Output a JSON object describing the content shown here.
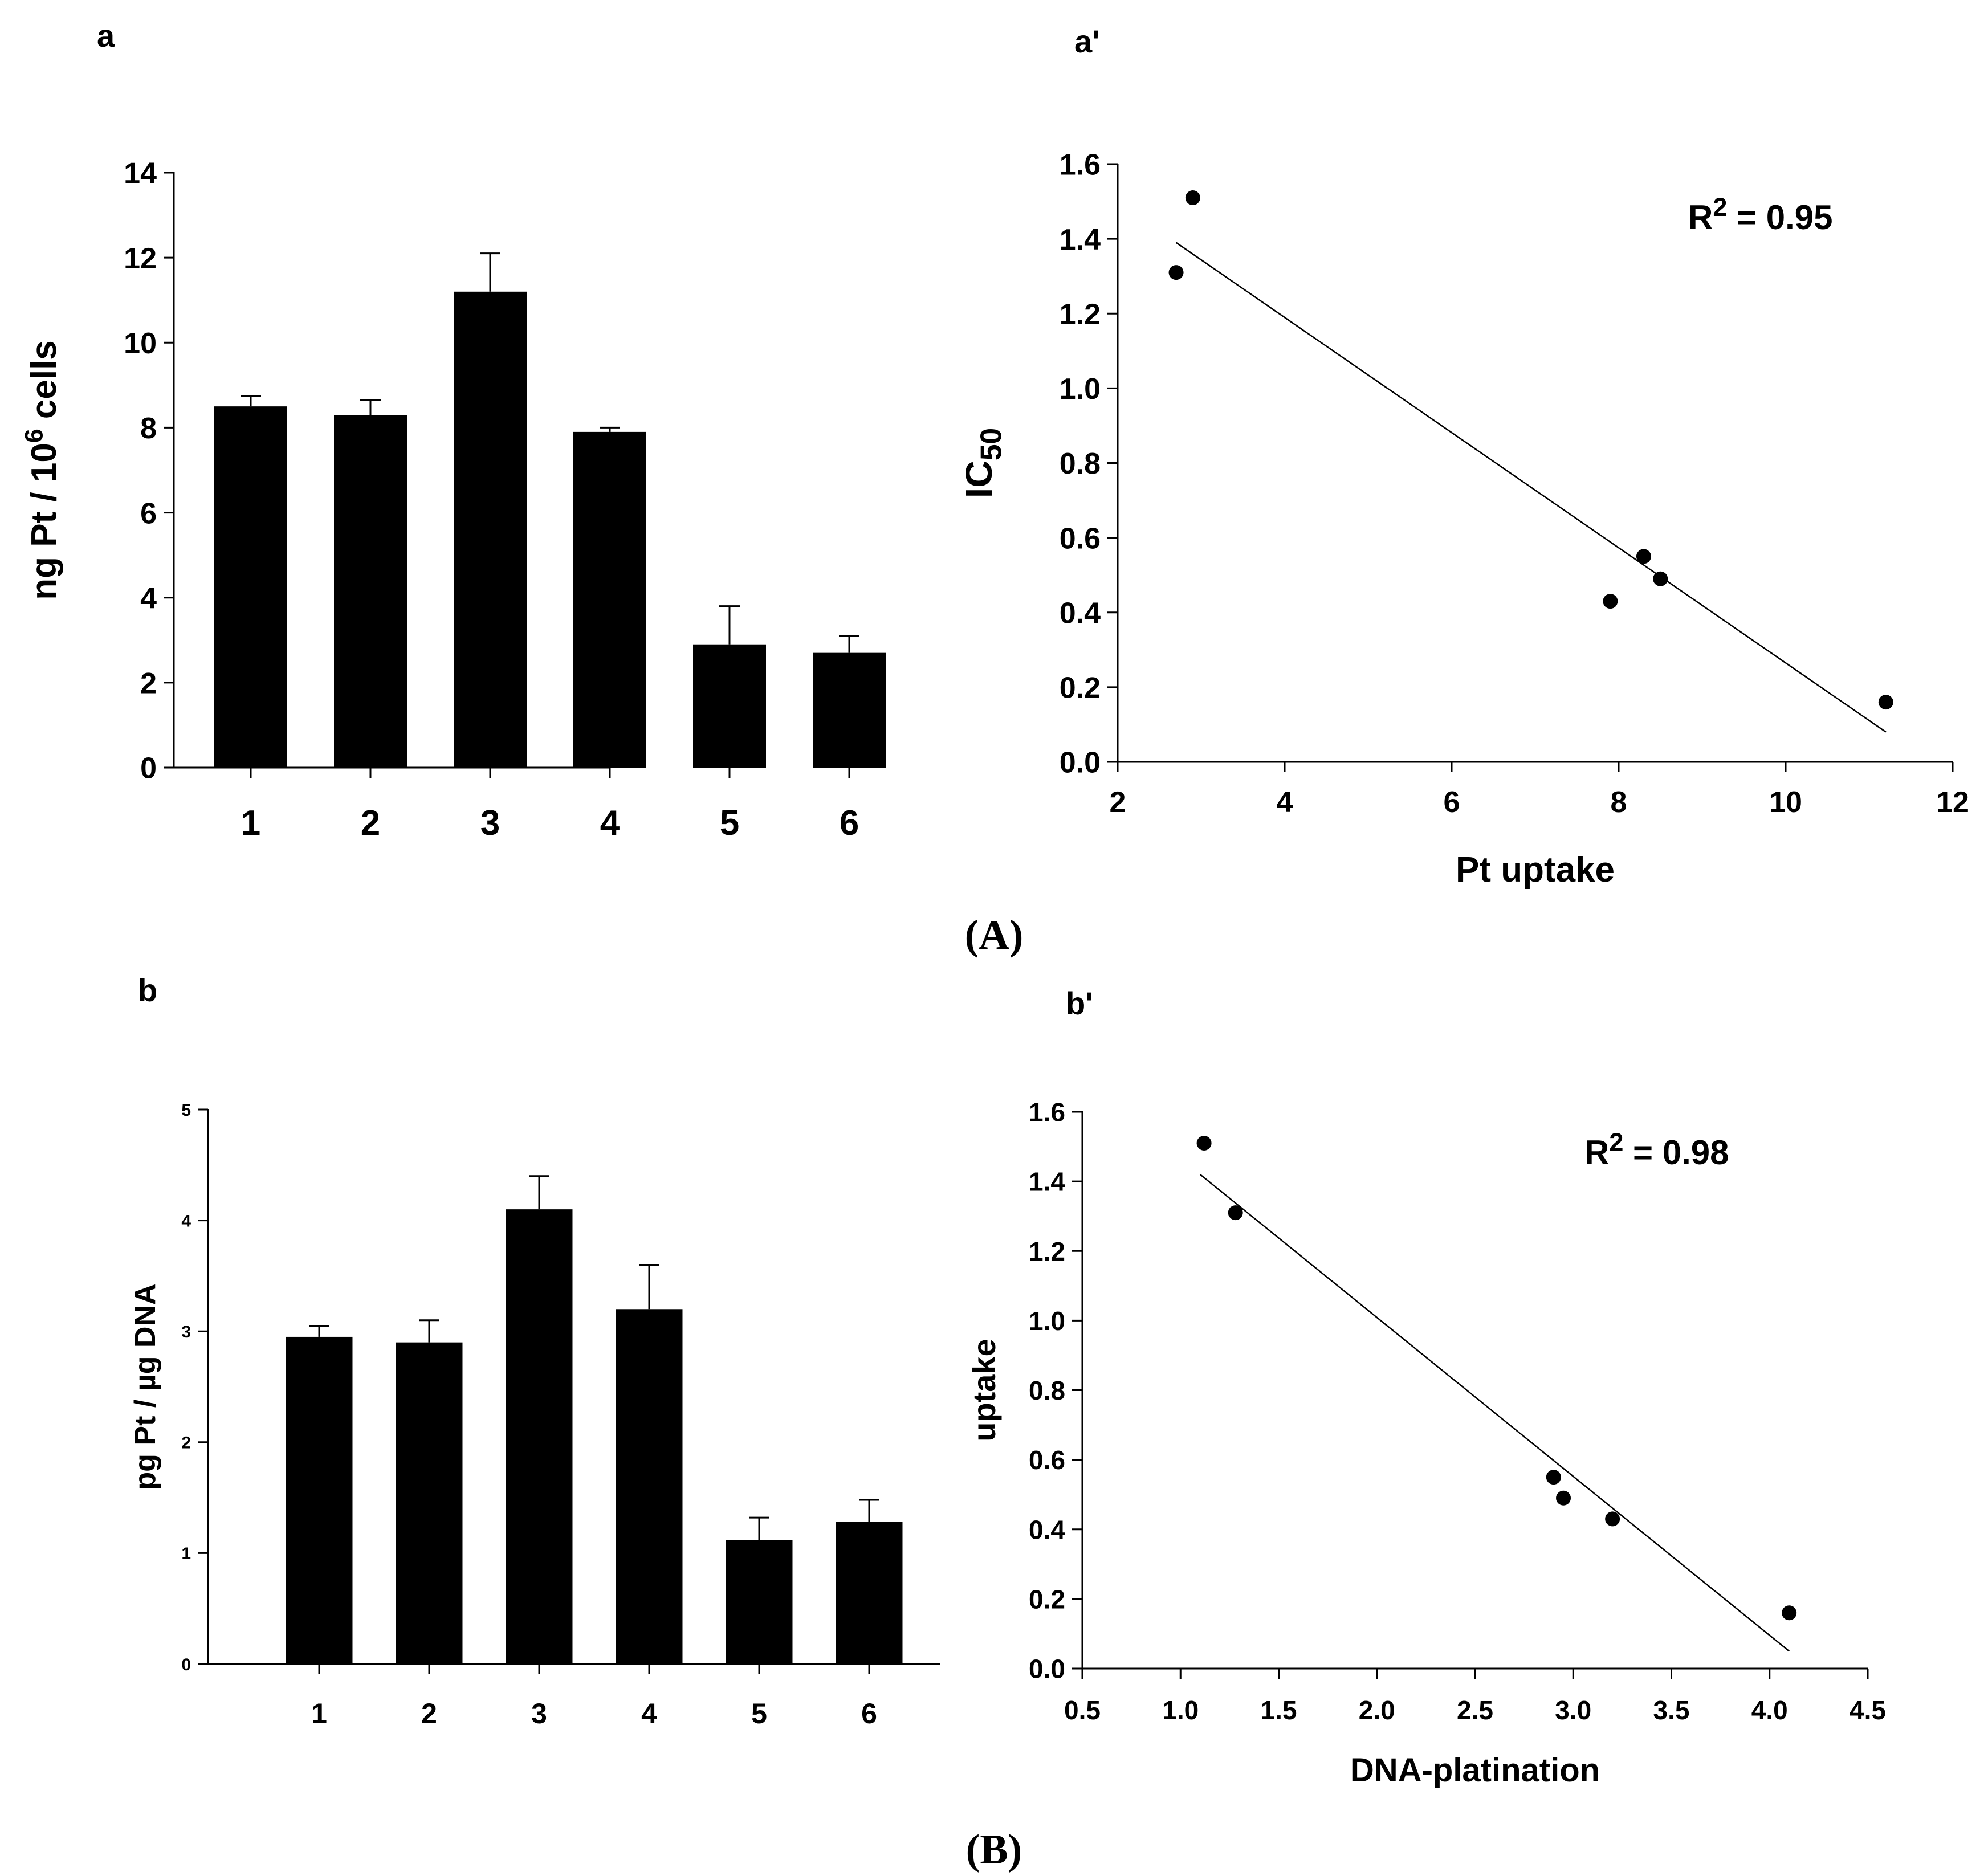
{
  "figure": {
    "group_labels": [
      "(A)",
      "(B)"
    ]
  },
  "chart_data": [
    {
      "id": "a",
      "panel_label": "a",
      "type": "bar",
      "title": "",
      "ylabel": "ng Pt / 10^6 cells",
      "ylabel_base": "ng Pt / 10",
      "ylabel_sup": "6",
      "ylabel_tail": " cells",
      "xlabel": "",
      "categories": [
        "1",
        "2",
        "3",
        "4",
        "5",
        "6"
      ],
      "values": [
        8.5,
        8.3,
        11.2,
        7.9,
        2.9,
        2.7
      ],
      "errors": [
        0.25,
        0.35,
        0.9,
        0.1,
        0.9,
        0.4
      ],
      "ylim": [
        0,
        14
      ],
      "yticks": [
        0,
        2,
        4,
        6,
        8,
        10,
        12,
        14
      ],
      "ytick_labels": [
        "0",
        "2",
        "4",
        "6",
        "8",
        "10",
        "12",
        "14"
      ],
      "grid": false
    },
    {
      "id": "a_prime",
      "panel_label": "a'",
      "type": "scatter",
      "title": "",
      "xlabel": "Pt uptake",
      "ylabel": "IC50",
      "ylabel_base": "IC",
      "ylabel_sub": "50",
      "points": [
        {
          "x": 2.7,
          "y": 1.31
        },
        {
          "x": 2.9,
          "y": 1.51
        },
        {
          "x": 7.9,
          "y": 0.43
        },
        {
          "x": 8.3,
          "y": 0.55
        },
        {
          "x": 8.5,
          "y": 0.49
        },
        {
          "x": 11.2,
          "y": 0.16
        }
      ],
      "fit_line": [
        {
          "x": 2.7,
          "y": 1.39
        },
        {
          "x": 11.2,
          "y": 0.08
        }
      ],
      "annotation": {
        "text": "R",
        "sup": "2",
        "tail": " = 0.95",
        "full": "R2 = 0.95"
      },
      "xlim": [
        2,
        12
      ],
      "ylim": [
        0,
        1.6
      ],
      "xticks": [
        2,
        4,
        6,
        8,
        10,
        12
      ],
      "xtick_labels": [
        "2",
        "4",
        "6",
        "8",
        "10",
        "12"
      ],
      "yticks": [
        0,
        0.2,
        0.4,
        0.6,
        0.8,
        1.0,
        1.2,
        1.4,
        1.6
      ],
      "ytick_labels": [
        "0.0",
        "0.2",
        "0.4",
        "0.6",
        "0.8",
        "1.0",
        "1.2",
        "1.4",
        "1.6"
      ],
      "grid": false
    },
    {
      "id": "b",
      "panel_label": "b",
      "type": "bar",
      "title": "",
      "ylabel": "pg Pt / µg DNA",
      "xlabel": "",
      "categories": [
        "1",
        "2",
        "3",
        "4",
        "5",
        "6"
      ],
      "values": [
        2.95,
        2.9,
        4.1,
        3.2,
        1.12,
        1.28
      ],
      "errors": [
        0.1,
        0.2,
        0.3,
        0.4,
        0.2,
        0.2
      ],
      "ylim": [
        0,
        5
      ],
      "yticks": [
        0,
        1,
        2,
        3,
        4,
        5
      ],
      "ytick_labels": [
        "0",
        "1",
        "2",
        "3",
        "4",
        "5"
      ],
      "grid": false
    },
    {
      "id": "b_prime",
      "panel_label": "b'",
      "type": "scatter",
      "title": "",
      "xlabel": "DNA-platination",
      "ylabel": "uptake",
      "points": [
        {
          "x": 1.12,
          "y": 1.51
        },
        {
          "x": 1.28,
          "y": 1.31
        },
        {
          "x": 2.9,
          "y": 0.55
        },
        {
          "x": 2.95,
          "y": 0.49
        },
        {
          "x": 3.2,
          "y": 0.43
        },
        {
          "x": 4.1,
          "y": 0.16
        }
      ],
      "fit_line": [
        {
          "x": 1.1,
          "y": 1.42
        },
        {
          "x": 4.1,
          "y": 0.05
        }
      ],
      "annotation": {
        "text": "R",
        "sup": "2",
        "tail": " = 0.98",
        "full": "R2 = 0.98"
      },
      "xlim": [
        0.5,
        4.5
      ],
      "ylim": [
        0,
        1.6
      ],
      "xticks": [
        0.5,
        1.0,
        1.5,
        2.0,
        2.5,
        3.0,
        3.5,
        4.0,
        4.5
      ],
      "xtick_labels": [
        "0.5",
        "1.0",
        "1.5",
        "2.0",
        "2.5",
        "3.0",
        "3.5",
        "4.0",
        "4.5"
      ],
      "yticks": [
        0,
        0.2,
        0.4,
        0.6,
        0.8,
        1.0,
        1.2,
        1.4,
        1.6
      ],
      "ytick_labels": [
        "0.0",
        "0.2",
        "0.4",
        "0.6",
        "0.8",
        "1.0",
        "1.2",
        "1.4",
        "1.6"
      ],
      "grid": false
    }
  ]
}
